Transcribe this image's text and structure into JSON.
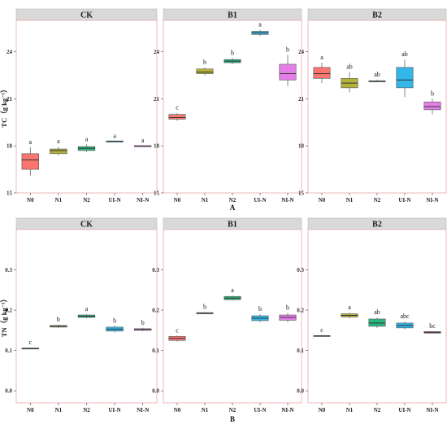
{
  "panel_label_A": "A",
  "panel_label_B": "B",
  "colors": {
    "strip_fill": "#d9d9d9",
    "panel_border": "#e8a8a8",
    "series": [
      "#f8766d",
      "#b5b23c",
      "#2ab67f",
      "#33b7e8",
      "#e57fe8"
    ]
  },
  "chart_data": [
    {
      "type": "boxplot",
      "row": "top",
      "panel": "CK",
      "ylabel": "TC（g kg⁻¹）",
      "ylim": [
        15,
        26
      ],
      "yticks": [
        15,
        18,
        21,
        24
      ],
      "categories": [
        "N0",
        "N1",
        "N2",
        "UI-N",
        "NI-N"
      ],
      "boxes": [
        {
          "min": 16.1,
          "q1": 16.5,
          "median": 17.1,
          "q3": 17.5,
          "max": 17.9
        },
        {
          "min": 17.4,
          "q1": 17.5,
          "median": 17.7,
          "q3": 17.8,
          "max": 17.95
        },
        {
          "min": 17.6,
          "q1": 17.7,
          "median": 17.85,
          "q3": 17.95,
          "max": 18.1
        },
        {
          "min": 18.3,
          "q1": 18.3,
          "median": 18.3,
          "q3": 18.3,
          "max": 18.3
        },
        {
          "min": 18.0,
          "q1": 18.0,
          "median": 18.0,
          "q3": 18.0,
          "max": 18.0
        }
      ],
      "letters": [
        "a",
        "a",
        "a",
        "a",
        "a"
      ]
    },
    {
      "type": "boxplot",
      "row": "top",
      "panel": "B1",
      "ylabel": "",
      "ylim": [
        15,
        26
      ],
      "yticks": [
        15,
        18,
        21,
        24
      ],
      "categories": [
        "N0",
        "N1",
        "N2",
        "UI-N",
        "NI-N"
      ],
      "boxes": [
        {
          "min": 19.6,
          "q1": 19.7,
          "median": 19.8,
          "q3": 20.0,
          "max": 20.1
        },
        {
          "min": 22.5,
          "q1": 22.6,
          "median": 22.7,
          "q3": 22.9,
          "max": 23.0
        },
        {
          "min": 23.2,
          "q1": 23.3,
          "median": 23.4,
          "q3": 23.5,
          "max": 23.6
        },
        {
          "min": 25.0,
          "q1": 25.1,
          "median": 25.2,
          "q3": 25.3,
          "max": 25.4
        },
        {
          "min": 21.8,
          "q1": 22.2,
          "median": 22.6,
          "q3": 23.2,
          "max": 23.8
        }
      ],
      "letters": [
        "c",
        "b",
        "b",
        "a",
        "b"
      ]
    },
    {
      "type": "boxplot",
      "row": "top",
      "panel": "B2",
      "ylabel": "",
      "ylim": [
        15,
        26
      ],
      "yticks": [
        15,
        18,
        21,
        24
      ],
      "categories": [
        "N0",
        "N1",
        "N2",
        "UI-N",
        "NI-N"
      ],
      "boxes": [
        {
          "min": 22.0,
          "q1": 22.3,
          "median": 22.6,
          "q3": 23.0,
          "max": 23.3
        },
        {
          "min": 21.4,
          "q1": 21.7,
          "median": 22.0,
          "q3": 22.3,
          "max": 22.7
        },
        {
          "min": 22.1,
          "q1": 22.1,
          "median": 22.1,
          "q3": 22.15,
          "max": 22.2
        },
        {
          "min": 21.1,
          "q1": 21.7,
          "median": 22.2,
          "q3": 23.0,
          "max": 23.5
        },
        {
          "min": 20.0,
          "q1": 20.3,
          "median": 20.5,
          "q3": 20.8,
          "max": 21.0
        }
      ],
      "letters": [
        "a",
        "ab",
        "ab",
        "ab",
        "b"
      ]
    },
    {
      "type": "boxplot",
      "row": "bottom",
      "panel": "CK",
      "ylabel": "TN（g kg⁻¹）",
      "ylim": [
        -0.03,
        0.4
      ],
      "yticks": [
        0.0,
        0.1,
        0.2,
        0.3
      ],
      "ytick_labels": [
        "0.0",
        "0.1",
        "0.2",
        "0.3"
      ],
      "categories": [
        "N0",
        "N1",
        "N2",
        "UI-N",
        "NI-N"
      ],
      "boxes": [
        {
          "min": 0.103,
          "q1": 0.104,
          "median": 0.105,
          "q3": 0.106,
          "max": 0.107
        },
        {
          "min": 0.156,
          "q1": 0.158,
          "median": 0.16,
          "q3": 0.162,
          "max": 0.164
        },
        {
          "min": 0.18,
          "q1": 0.182,
          "median": 0.185,
          "q3": 0.188,
          "max": 0.19
        },
        {
          "min": 0.145,
          "q1": 0.148,
          "median": 0.153,
          "q3": 0.158,
          "max": 0.161
        },
        {
          "min": 0.148,
          "q1": 0.15,
          "median": 0.152,
          "q3": 0.154,
          "max": 0.156
        }
      ],
      "letters": [
        "c",
        "b",
        "a",
        "b",
        "b"
      ]
    },
    {
      "type": "boxplot",
      "row": "bottom",
      "panel": "B1",
      "ylabel": "",
      "ylim": [
        -0.03,
        0.4
      ],
      "yticks": [
        0.0,
        0.1,
        0.2,
        0.3
      ],
      "ytick_labels": [
        "0.0",
        "0.1",
        "0.2",
        "0.3"
      ],
      "categories": [
        "N0",
        "N1",
        "N2",
        "UI-N",
        "NI-N"
      ],
      "boxes": [
        {
          "min": 0.122,
          "q1": 0.125,
          "median": 0.13,
          "q3": 0.135,
          "max": 0.137
        },
        {
          "min": 0.19,
          "q1": 0.191,
          "median": 0.192,
          "q3": 0.194,
          "max": 0.195
        },
        {
          "min": 0.224,
          "q1": 0.226,
          "median": 0.23,
          "q3": 0.234,
          "max": 0.236
        },
        {
          "min": 0.17,
          "q1": 0.174,
          "median": 0.18,
          "q3": 0.186,
          "max": 0.19
        },
        {
          "min": 0.17,
          "q1": 0.175,
          "median": 0.182,
          "q3": 0.188,
          "max": 0.193
        }
      ],
      "letters": [
        "c",
        "b",
        "a",
        "b",
        "b"
      ]
    },
    {
      "type": "boxplot",
      "row": "bottom",
      "panel": "B2",
      "ylabel": "",
      "ylim": [
        -0.03,
        0.4
      ],
      "yticks": [
        0.0,
        0.1,
        0.2,
        0.3
      ],
      "ytick_labels": [
        "0.0",
        "0.1",
        "0.2",
        "0.3"
      ],
      "categories": [
        "N0",
        "N1",
        "N2",
        "UI-N",
        "NI-N"
      ],
      "boxes": [
        {
          "min": 0.134,
          "q1": 0.135,
          "median": 0.136,
          "q3": 0.137,
          "max": 0.138
        },
        {
          "min": 0.18,
          "q1": 0.183,
          "median": 0.187,
          "q3": 0.191,
          "max": 0.194
        },
        {
          "min": 0.156,
          "q1": 0.16,
          "median": 0.168,
          "q3": 0.178,
          "max": 0.182
        },
        {
          "min": 0.153,
          "q1": 0.156,
          "median": 0.162,
          "q3": 0.168,
          "max": 0.172
        },
        {
          "min": 0.142,
          "q1": 0.143,
          "median": 0.145,
          "q3": 0.147,
          "max": 0.148
        }
      ],
      "letters": [
        "c",
        "a",
        "ab",
        "abc",
        "bc"
      ]
    }
  ]
}
